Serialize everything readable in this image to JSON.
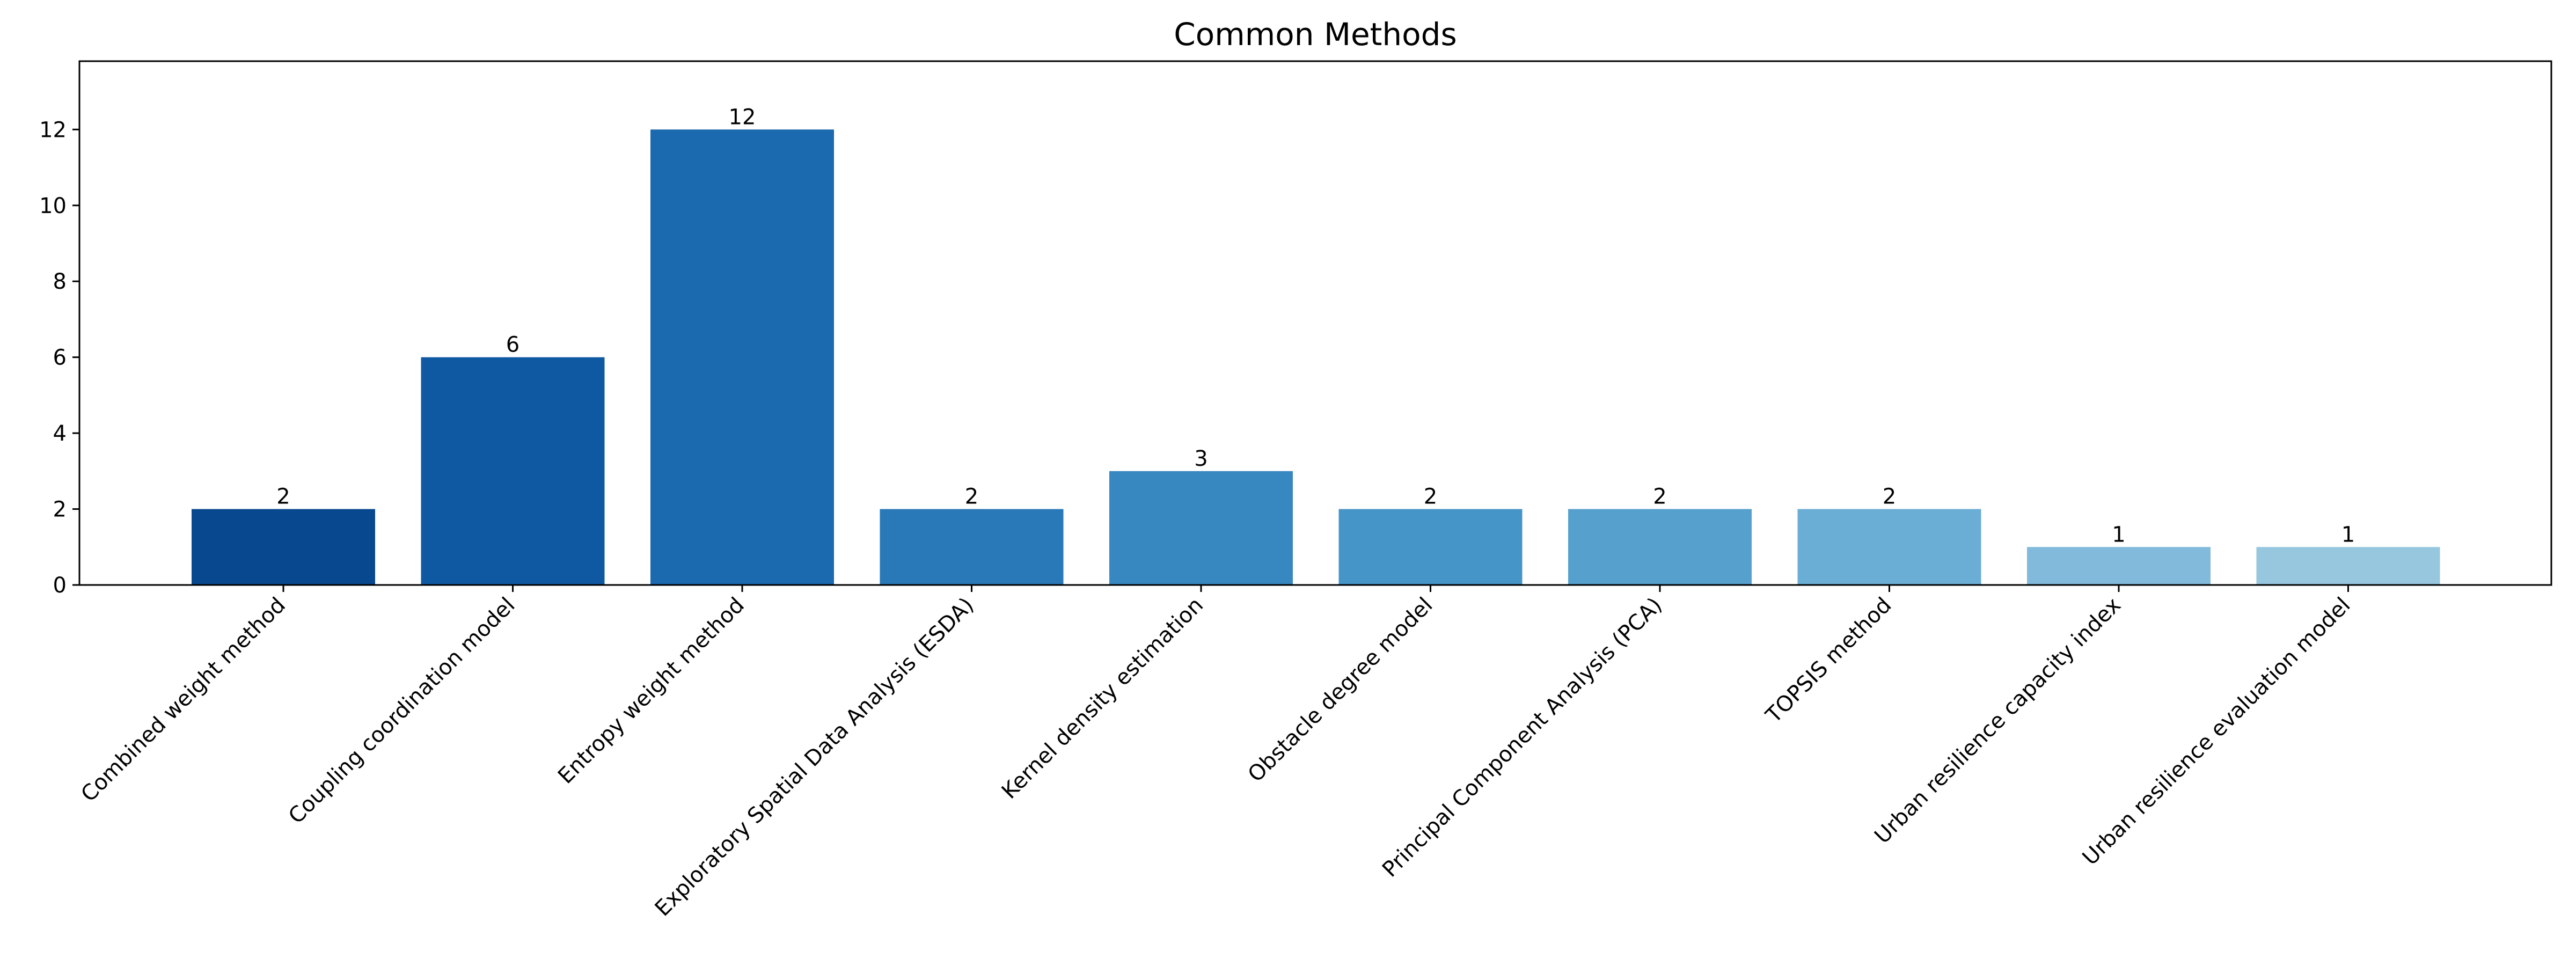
{
  "chart_data": {
    "type": "bar",
    "title": "Common Methods",
    "xlabel": "",
    "ylabel": "",
    "ylim": [
      0,
      13.8
    ],
    "yticks": [
      0,
      2,
      4,
      6,
      8,
      10,
      12
    ],
    "grid": false,
    "legend": "none",
    "categories": [
      "Combined weight method",
      "Coupling coordination model",
      "Entropy weight method",
      "Exploratory Spatial Data Analysis (ESDA)",
      "Kernel density estimation",
      "Obstacle degree model",
      "Principal Component Analysis (PCA)",
      "TOPSIS method",
      "Urban resilience capacity index",
      "Urban resilience evaluation model"
    ],
    "values": [
      2,
      6,
      12,
      2,
      3,
      2,
      2,
      2,
      1,
      1
    ],
    "data_labels": [
      "2",
      "6",
      "12",
      "2",
      "3",
      "2",
      "2",
      "2",
      "1",
      "1"
    ],
    "colors": [
      "#08488e",
      "#0f59a3",
      "#1b69af",
      "#2979b9",
      "#3787c0",
      "#4695c8",
      "#56a0ce",
      "#6aaed6",
      "#81badb",
      "#97c6df"
    ]
  }
}
